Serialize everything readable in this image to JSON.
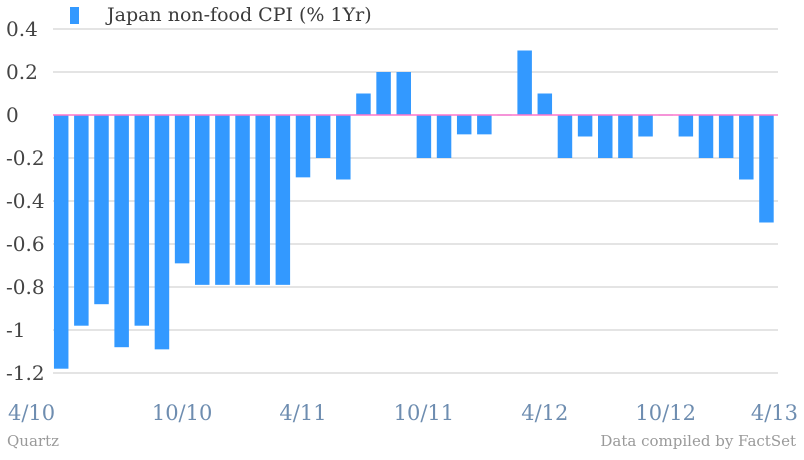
{
  "chart_data": {
    "type": "bar",
    "title": "",
    "xlabel": "",
    "ylabel": "",
    "ylim": [
      -1.2,
      0.4
    ],
    "y_ticks": [
      0.4,
      0.2,
      0,
      -0.2,
      -0.4,
      -0.6,
      -0.8,
      -1,
      -1.2
    ],
    "y_tick_labels": [
      "0.4",
      "0.2",
      "0",
      "-0.2",
      "-0.4",
      "-0.6",
      "-0.8",
      "-1",
      "-1.2"
    ],
    "x_tick_labels": [
      {
        "label": "4/10",
        "index": 0
      },
      {
        "label": "10/10",
        "index": 6
      },
      {
        "label": "4/11",
        "index": 12
      },
      {
        "label": "10/11",
        "index": 18
      },
      {
        "label": "4/12",
        "index": 24
      },
      {
        "label": "10/12",
        "index": 30
      },
      {
        "label": "4/13",
        "index": 36
      }
    ],
    "grid": true,
    "legend_position": "top-left",
    "series": [
      {
        "name": "Japan non-food CPI (% 1Yr)",
        "color": "#3399ff",
        "values": [
          -1.18,
          -0.98,
          -0.88,
          -1.08,
          -0.98,
          -1.09,
          -0.69,
          -0.79,
          -0.79,
          -0.79,
          -0.79,
          -0.79,
          -0.29,
          -0.2,
          -0.3,
          0.1,
          0.2,
          0.2,
          -0.2,
          -0.2,
          -0.09,
          -0.09,
          0.0,
          0.3,
          0.1,
          -0.2,
          -0.1,
          -0.2,
          -0.2,
          -0.1,
          0.0,
          -0.1,
          -0.2,
          -0.2,
          -0.3,
          -0.5
        ]
      }
    ]
  },
  "footer": {
    "source_left": "Quartz",
    "source_right": "Data compiled by FactSet"
  },
  "colors": {
    "bar": "#3399ff",
    "zero_line": "#ff77cc",
    "grid": "#c8c8c8",
    "y_tick_text": "#444444",
    "x_tick_text": "#6e8db0"
  }
}
